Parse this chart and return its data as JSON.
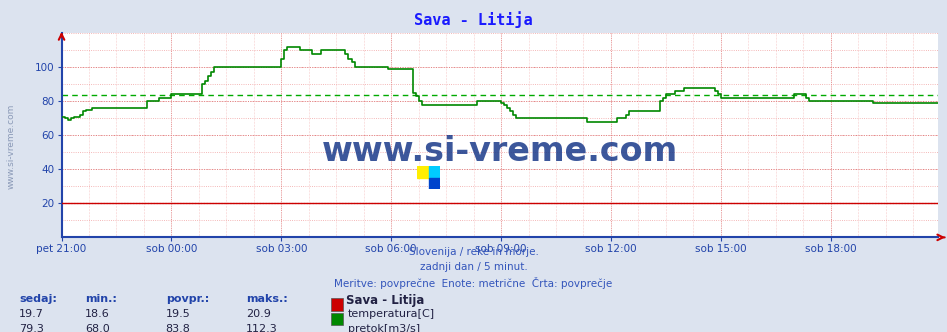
{
  "title": "Sava - Litija",
  "title_color": "#1a1aff",
  "bg_color": "#dce3ef",
  "plot_bg_color": "#ffffff",
  "temp_color": "#cc0000",
  "flow_color": "#008800",
  "avg_flow_color": "#00aa00",
  "avg_flow_value": 83.8,
  "avg_temp_value": 20.0,
  "watermark_text": "www.si-vreme.com",
  "watermark_color": "#1a3a8a",
  "ylim": [
    0,
    120
  ],
  "yticks": [
    20,
    40,
    60,
    80,
    100
  ],
  "xtick_labels": [
    "pet 21:00",
    "sob 00:00",
    "sob 03:00",
    "sob 06:00",
    "sob 09:00",
    "sob 12:00",
    "sob 15:00",
    "sob 18:00"
  ],
  "xtick_positions": [
    0,
    36,
    72,
    108,
    144,
    180,
    216,
    252
  ],
  "xlim": [
    0,
    287
  ],
  "subtitle1": "Slovenija / reke in morje.",
  "subtitle2": "zadnji dan / 5 minut.",
  "subtitle3": "Meritve: povprečne  Enote: metrične  Črta: povprečje",
  "legend_title": "Sava - Litija",
  "legend_items": [
    {
      "label": "temperatura[C]",
      "color": "#cc0000"
    },
    {
      "label": "pretok[m3/s]",
      "color": "#008800"
    }
  ],
  "stat_headers": [
    "sedaj:",
    "min.:",
    "povpr.:",
    "maks.:"
  ],
  "stat_temp": [
    19.7,
    18.6,
    19.5,
    20.9
  ],
  "stat_flow": [
    79.3,
    68.0,
    83.8,
    112.3
  ],
  "left_label": "www.si-vreme.com",
  "flow_data": [
    71,
    70,
    69,
    70,
    71,
    71,
    72,
    74,
    75,
    75,
    76,
    76,
    76,
    76,
    76,
    76,
    76,
    76,
    76,
    76,
    76,
    76,
    76,
    76,
    76,
    76,
    76,
    76,
    80,
    80,
    80,
    80,
    82,
    82,
    82,
    82,
    84,
    84,
    84,
    84,
    84,
    84,
    84,
    84,
    84,
    84,
    90,
    92,
    95,
    97,
    100,
    100,
    100,
    100,
    100,
    100,
    100,
    100,
    100,
    100,
    100,
    100,
    100,
    100,
    100,
    100,
    100,
    100,
    100,
    100,
    100,
    100,
    105,
    110,
    112,
    112,
    112,
    112,
    110,
    110,
    110,
    110,
    108,
    108,
    108,
    110,
    110,
    110,
    110,
    110,
    110,
    110,
    110,
    108,
    105,
    103,
    100,
    100,
    100,
    100,
    100,
    100,
    100,
    100,
    100,
    100,
    100,
    99,
    99,
    99,
    99,
    99,
    99,
    99,
    99,
    85,
    83,
    80,
    78,
    78,
    78,
    78,
    78,
    78,
    78,
    78,
    78,
    78,
    78,
    78,
    78,
    78,
    78,
    78,
    78,
    78,
    80,
    80,
    80,
    80,
    80,
    80,
    80,
    80,
    79,
    78,
    76,
    74,
    72,
    70,
    70,
    70,
    70,
    70,
    70,
    70,
    70,
    70,
    70,
    70,
    70,
    70,
    70,
    70,
    70,
    70,
    70,
    70,
    70,
    70,
    70,
    70,
    68,
    68,
    68,
    68,
    68,
    68,
    68,
    68,
    68,
    68,
    70,
    70,
    70,
    72,
    74,
    74,
    74,
    74,
    74,
    74,
    74,
    74,
    74,
    74,
    80,
    82,
    84,
    84,
    84,
    86,
    86,
    86,
    88,
    88,
    88,
    88,
    88,
    88,
    88,
    88,
    88,
    88,
    86,
    84,
    82,
    82,
    82,
    82,
    82,
    82,
    82,
    82,
    82,
    82,
    82,
    82,
    82,
    82,
    82,
    82,
    82,
    82,
    82,
    82,
    82,
    82,
    82,
    82,
    84,
    84,
    84,
    84,
    82,
    80,
    80,
    80,
    80,
    80,
    80,
    80,
    80,
    80,
    80,
    80,
    80,
    80,
    80,
    80,
    80,
    80,
    80,
    80,
    80,
    80,
    79,
    79,
    79,
    79,
    79,
    79,
    79,
    79,
    79,
    79,
    79,
    79,
    79,
    79,
    79,
    79,
    79,
    79,
    79,
    79,
    79,
    79
  ]
}
